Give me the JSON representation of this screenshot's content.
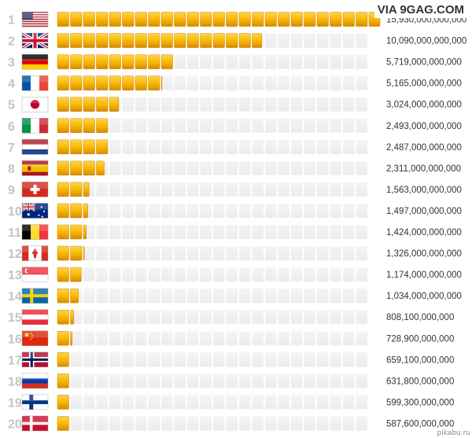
{
  "watermark": "VIA 9GAG.COM",
  "credit": "pikabu.ru",
  "colors": {
    "bar": "#f7b500",
    "bar_dark": "#d68b00",
    "bar_light": "#ffd54a",
    "track": "#ececec",
    "rank": "#c4c4c4",
    "value": "#333333"
  },
  "chart_data": {
    "type": "bar",
    "orientation": "horizontal",
    "title": "",
    "xlabel": "",
    "ylabel": "",
    "xlim": [
      0,
      15930000000000
    ],
    "categories": [
      "United States",
      "United Kingdom",
      "Germany",
      "France",
      "Japan",
      "Italy",
      "Netherlands",
      "Spain",
      "Switzerland",
      "Australia",
      "Belgium",
      "Canada",
      "Singapore",
      "Sweden",
      "Austria",
      "China",
      "Norway",
      "Russia",
      "Finland",
      "Denmark"
    ],
    "ranks": [
      "1",
      "2",
      "3",
      "4",
      "5",
      "6",
      "7",
      "8",
      "9",
      "10",
      "11",
      "12",
      "13",
      "14",
      "15",
      "16",
      "17",
      "18",
      "19",
      "20"
    ],
    "flags": [
      "us",
      "gb",
      "de",
      "fr",
      "jp",
      "it",
      "nl",
      "es",
      "ch",
      "au",
      "be",
      "ca",
      "sg",
      "se",
      "at",
      "cn",
      "no",
      "ru",
      "fi",
      "dk"
    ],
    "values": [
      15930000000000,
      10090000000000,
      5719000000000,
      5165000000000,
      3024000000000,
      2493000000000,
      2487000000000,
      2311000000000,
      1563000000000,
      1497000000000,
      1424000000000,
      1326000000000,
      1174000000000,
      1034000000000,
      808100000000,
      728900000000,
      659100000000,
      631800000000,
      599300000000,
      587600000000
    ],
    "value_labels": [
      "15,930,000,000,000",
      "10,090,000,000,000",
      "5,719,000,000,000",
      "5,165,000,000,000",
      "3,024,000,000,000",
      "2,493,000,000,000",
      "2,487,000,000,000",
      "2,311,000,000,000",
      "1,563,000,000,000",
      "1,497,000,000,000",
      "1,424,000,000,000",
      "1,326,000,000,000",
      "1,174,000,000,000",
      "1,034,000,000,000",
      "808,100,000,000",
      "728,900,000,000",
      "659,100,000,000",
      "631,800,000,000",
      "599,300,000,000",
      "587,600,000,000"
    ]
  }
}
